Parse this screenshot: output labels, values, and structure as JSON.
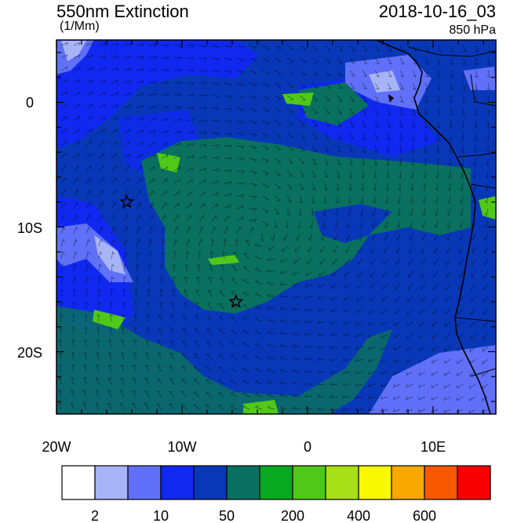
{
  "header": {
    "title": "550nm Extinction",
    "units": "(1/Mm)",
    "datetime": "2018-10-16_03",
    "level": "850 hPa"
  },
  "map": {
    "lon_labels": [
      "20W",
      "10W",
      "0",
      "10E"
    ],
    "lat_labels": [
      "0",
      "10S",
      "20S"
    ],
    "markers": [
      {
        "name": "star-marker-west",
        "lon": -14.4,
        "lat": -8.0
      },
      {
        "name": "star-marker-south",
        "lon": -5.7,
        "lat": -16.0
      }
    ]
  },
  "colorbar": {
    "colors": [
      "#ffffff",
      "#a8b4f8",
      "#6070f8",
      "#1028f0",
      "#0838b8",
      "#0a7060",
      "#08a820",
      "#50c818",
      "#a8e018",
      "#f8f800",
      "#f8a800",
      "#f85800",
      "#f80000"
    ],
    "tick_labels": [
      "2",
      "10",
      "50",
      "200",
      "400",
      "600"
    ]
  },
  "colors": {
    "ocean_base": "#0838b8",
    "plume": "#0a7060",
    "coast": "#000000"
  }
}
